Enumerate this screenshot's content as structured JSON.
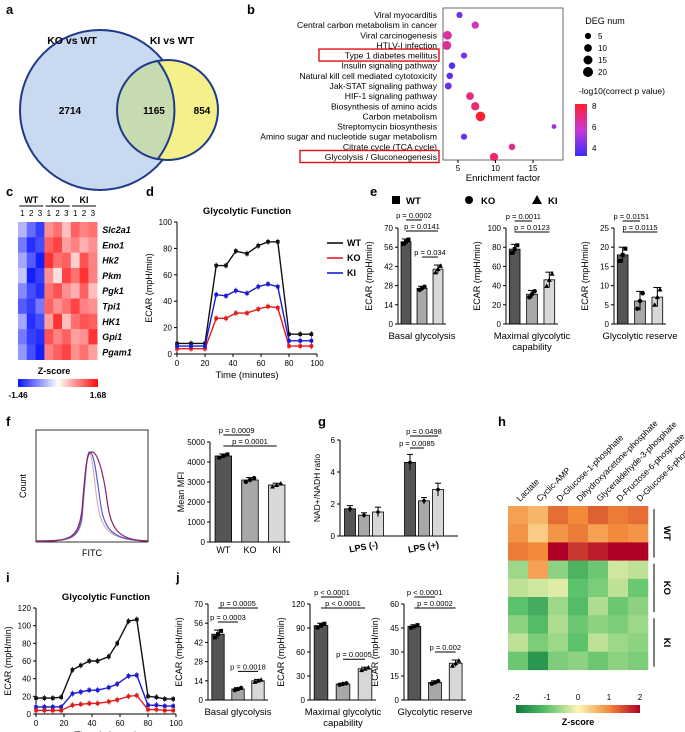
{
  "panels": {
    "a": {
      "label": "a",
      "set1": "KO vs WT",
      "set2": "KI vs WT",
      "only1": "2714",
      "both": "1165",
      "only2": "854",
      "colors": {
        "set1": "#c9daf0",
        "set2": "#f4f08a",
        "overlap": "#c7dbb0",
        "edge": "#1f3a8a"
      }
    },
    "b": {
      "label": "b",
      "chart_data": {
        "type": "scatter",
        "xlabel": "Enrichment factor",
        "xticks": [
          "5",
          "10",
          "15"
        ],
        "xlim": [
          3,
          19
        ],
        "categories": [
          "Viral myocarditis",
          "Central carbon metabolism in cancer",
          "Viral carcinogenesis",
          "HTLV-I infection",
          "Type 1 diabetes mellitus",
          "Insulin signaling pathway",
          "Natural kill cell mediated cytotoxicity",
          "Jak-STAT signaling pathway",
          "HIF-1 signaling pathway",
          "Biosynthesis of amino acids",
          "Carbon metabolism",
          "Streptomycin biosynthesis",
          "Amino sugar and nucleotide sugar metabolism",
          "Citrate cycle (TCA cycle)",
          "Glycolysis / Gluconeogenesis"
        ],
        "highlighted": [
          "Type 1 diabetes mellitus",
          "Glycolysis / Gluconeogenesis"
        ],
        "points": [
          {
            "x": 5.2,
            "size": 5,
            "p": 3.2
          },
          {
            "x": 7.3,
            "size": 8,
            "p": 5.5
          },
          {
            "x": 3.6,
            "size": 14,
            "p": 6.0
          },
          {
            "x": 3.5,
            "size": 15,
            "p": 6.2
          },
          {
            "x": 5.8,
            "size": 5,
            "p": 3.4
          },
          {
            "x": 4.2,
            "size": 6,
            "p": 2.6
          },
          {
            "x": 3.9,
            "size": 6,
            "p": 2.8
          },
          {
            "x": 3.7,
            "size": 7,
            "p": 3.0
          },
          {
            "x": 6.6,
            "size": 10,
            "p": 6.5
          },
          {
            "x": 7.3,
            "size": 12,
            "p": 6.8
          },
          {
            "x": 8.0,
            "size": 18,
            "p": 8.0
          },
          {
            "x": 17.8,
            "size": 2,
            "p": 4.0
          },
          {
            "x": 5.8,
            "size": 5,
            "p": 3.1
          },
          {
            "x": 12.2,
            "size": 6,
            "p": 6.3
          },
          {
            "x": 9.8,
            "size": 12,
            "p": 7.0
          }
        ],
        "size_legend_title": "DEG num",
        "size_legend": [
          "5",
          "10",
          "15",
          "20"
        ],
        "color_legend_title": "-log10(correct p value)",
        "color_ticks": [
          "8",
          "6",
          "4"
        ],
        "colors": {
          "low": "#3b2bf5",
          "mid": "#c63ad6",
          "high": "#ff1f2e",
          "box": "#e01010"
        }
      }
    },
    "c": {
      "label": "c",
      "groups": [
        "WT",
        "KO",
        "KI"
      ],
      "reps": [
        "1",
        "2",
        "3"
      ],
      "genes": [
        "Slc2a1",
        "Eno1",
        "Hk2",
        "Pkm",
        "Pgk1",
        "Tpi1",
        "HK1",
        "Gpi1",
        "Pgam1"
      ],
      "values": [
        [
          0.6,
          1.1,
          1.4,
          -0.6,
          -0.8,
          -0.3,
          -0.9,
          -0.7,
          -0.8
        ],
        [
          1.0,
          1.5,
          1.3,
          -0.9,
          -1.1,
          -0.5,
          -0.7,
          -0.4,
          -0.6
        ],
        [
          0.7,
          1.2,
          1.6,
          -1.2,
          -0.8,
          -0.9,
          -0.2,
          -1.0,
          -0.7
        ],
        [
          0.5,
          1.6,
          1.4,
          -0.6,
          -0.1,
          -1.1,
          -0.8,
          -1.2,
          -0.7
        ],
        [
          0.9,
          1.3,
          1.5,
          -0.8,
          -1.0,
          -0.6,
          -0.4,
          -0.9,
          -0.3
        ],
        [
          1.2,
          1.4,
          1.0,
          -0.9,
          -0.6,
          -0.8,
          -1.1,
          -0.7,
          -0.6
        ],
        [
          0.7,
          1.5,
          1.3,
          -0.5,
          -1.2,
          -0.3,
          -0.8,
          -1.0,
          -0.9
        ],
        [
          1.0,
          1.4,
          1.5,
          -1.0,
          -0.7,
          -0.9,
          -0.5,
          -0.6,
          -1.2
        ],
        [
          0.8,
          1.3,
          1.6,
          -0.7,
          -0.9,
          -1.1,
          -0.6,
          -0.8,
          -0.5
        ]
      ],
      "legend_title": "Z-score",
      "min_label": "-1.46",
      "max_label": "1.68",
      "colors": {
        "low": "#0a14ff",
        "mid": "#ffffff",
        "high": "#ff0a0a"
      }
    },
    "d": {
      "label": "d",
      "chart_data": {
        "type": "line",
        "title": "Glycolytic Function",
        "xlabel": "Time (minutes)",
        "ylabel": "ECAR (mpH/min)",
        "xlim": [
          0,
          100
        ],
        "ylim": [
          0,
          100
        ],
        "xticks": [
          "0",
          "20",
          "40",
          "60",
          "80",
          "100"
        ],
        "yticks": [
          "0",
          "20",
          "40",
          "60",
          "80",
          "100"
        ],
        "x": [
          0,
          10,
          20,
          28,
          35,
          42,
          50,
          58,
          65,
          72,
          80,
          88,
          96
        ],
        "series": [
          {
            "name": "WT",
            "color": "#111111",
            "values": [
              8,
              8,
              8,
              67,
              67,
              78,
              76,
              82,
              85,
              85,
              15,
              15,
              15
            ]
          },
          {
            "name": "KO",
            "color": "#e31b1b",
            "values": [
              4,
              4,
              4,
              27,
              27,
              31,
              31,
              34,
              36,
              35,
              6,
              6,
              6
            ]
          },
          {
            "name": "KI",
            "color": "#1a1ad6",
            "values": [
              6,
              6,
              6,
              45,
              44,
              48,
              46,
              51,
              53,
              51,
              10,
              10,
              10
            ]
          }
        ]
      }
    },
    "e": {
      "label": "e",
      "legend": [
        "WT",
        "KO",
        "KI"
      ],
      "chart_data": [
        {
          "type": "bar",
          "xlabel": "Basal glycolysis",
          "ylabel": "ECAR (mpH/min)",
          "ylim": [
            0,
            70
          ],
          "yticks": [
            "0",
            "14",
            "28",
            "42",
            "56",
            "70"
          ],
          "categories": [
            "WT",
            "KO",
            "KI"
          ],
          "values": [
            60,
            26,
            40
          ],
          "errors": [
            2,
            1.5,
            3
          ],
          "pvalues": [
            {
              "text": "p = 0.0141",
              "from": 0,
              "to": 2
            },
            {
              "text": "p = 0.0002",
              "from": 0,
              "to": 1
            },
            {
              "text": "p = 0.034",
              "from": 1,
              "to": 2
            }
          ]
        },
        {
          "type": "bar",
          "xlabel": "Maximal glycolytic\ncapability",
          "ylabel": "ECAR (mpH/min)",
          "ylim": [
            0,
            100
          ],
          "yticks": [
            "0",
            "20",
            "40",
            "60",
            "80",
            "100"
          ],
          "categories": [
            "WT",
            "KO",
            "KI"
          ],
          "values": [
            78,
            31,
            46
          ],
          "errors": [
            5,
            4,
            8
          ],
          "pvalues": [
            {
              "text": "p = 0.0123",
              "from": 0,
              "to": 2
            },
            {
              "text": "p = 0.0011",
              "from": 0,
              "to": 1
            }
          ]
        },
        {
          "type": "bar",
          "xlabel": "Glycolytic reserve",
          "ylabel": "ECAR (mpH/min)",
          "ylim": [
            0,
            25
          ],
          "yticks": [
            "0",
            "5",
            "10",
            "15",
            "20",
            "25"
          ],
          "categories": [
            "WT",
            "KO",
            "KI"
          ],
          "values": [
            18,
            6,
            7
          ],
          "errors": [
            2,
            2.5,
            2.5
          ],
          "pvalues": [
            {
              "text": "p = 0.0115",
              "from": 0,
              "to": 2
            },
            {
              "text": "p = 0.0151",
              "from": 0,
              "to": 1
            }
          ]
        }
      ]
    },
    "f": {
      "label": "f",
      "hist_ylabel": "Count",
      "hist_xlabel": "FITC",
      "chart_data": {
        "type": "bar",
        "ylabel": "Mean MFI",
        "ylim": [
          0,
          5000
        ],
        "yticks": [
          "0",
          "1000",
          "2000",
          "3000",
          "4000",
          "5000"
        ],
        "categories": [
          "WT",
          "KO",
          "KI"
        ],
        "values": [
          4300,
          3100,
          2850
        ],
        "errors": [
          100,
          120,
          90
        ],
        "pvalues": [
          {
            "text": "p = 0.0001",
            "from": 0,
            "to": 2
          },
          {
            "text": "p = 0.0009",
            "from": 0,
            "to": 1
          }
        ]
      }
    },
    "g": {
      "label": "g",
      "chart_data": {
        "type": "bar",
        "ylabel": "NAD+/NADH ratio",
        "ylim": [
          0,
          6
        ],
        "yticks": [
          "0",
          "2",
          "4",
          "6"
        ],
        "groups": [
          "LPS (-)",
          "LPS (+)"
        ],
        "series": [
          {
            "values": [
              1.7,
              4.6
            ]
          },
          {
            "values": [
              1.3,
              2.2
            ]
          },
          {
            "values": [
              1.5,
              2.9
            ]
          }
        ],
        "errors": [
          [
            0.2,
            0.5
          ],
          [
            0.15,
            0.2
          ],
          [
            0.3,
            0.4
          ]
        ],
        "pvalues": [
          {
            "text": "p = 0.0498",
            "group": 1,
            "from": 0,
            "to": 2
          },
          {
            "text": "p = 0.0085",
            "group": 1,
            "from": 0,
            "to": 1
          }
        ]
      }
    },
    "h": {
      "label": "h",
      "metabolites": [
        "Lactate",
        "Cyclic-AMP",
        "D-Glucose-1-phosphate",
        "Dihydroxyacetone-phosphate",
        "Glyceraldehyde-3-phosphate",
        "D-Fructose-6-phosphate",
        "D-Glucose-6-phosphate"
      ],
      "groups": [
        "WT",
        "KO",
        "KI"
      ],
      "values": [
        [
          0.8,
          0.6,
          1.2,
          1.0,
          1.3,
          1.1,
          1.2
        ],
        [
          0.9,
          0.4,
          0.9,
          1.1,
          0.8,
          1.0,
          0.9
        ],
        [
          1.1,
          1.0,
          2.0,
          1.6,
          1.8,
          2.2,
          2.1
        ],
        [
          -0.6,
          0.8,
          -0.7,
          -1.2,
          -0.9,
          -0.3,
          -0.4
        ],
        [
          -0.4,
          -0.3,
          -0.2,
          -1.0,
          -0.8,
          -0.4,
          -0.9
        ],
        [
          -1.0,
          -1.3,
          -0.6,
          -1.1,
          -0.5,
          -0.9,
          -0.7
        ],
        [
          -0.7,
          -1.1,
          -0.5,
          -0.9,
          -0.7,
          -0.8,
          -0.6
        ],
        [
          -0.4,
          -0.8,
          -0.6,
          -1.0,
          -0.4,
          -0.6,
          -0.7
        ],
        [
          -0.9,
          -1.6,
          -0.8,
          -0.7,
          -0.9,
          -0.7,
          -0.8
        ]
      ],
      "scale_ticks": [
        "-2",
        "-1",
        "0",
        "1",
        "2"
      ],
      "legend_title": "Z-score",
      "colors": {
        "low": "#0b7a3a",
        "midlow": "#5cc26b",
        "mid": "#fff6b5",
        "midhigh": "#f28a3a",
        "high": "#b00026"
      }
    },
    "i": {
      "label": "i",
      "chart_data": {
        "type": "line",
        "title": "Glycolytic Function",
        "xlabel": "Time (minutes)",
        "ylabel": "ECAR (mpH/min)",
        "xlim": [
          0,
          100
        ],
        "ylim": [
          0,
          120
        ],
        "xticks": [
          "0",
          "20",
          "40",
          "60",
          "80",
          "100"
        ],
        "yticks": [
          "0",
          "20",
          "40",
          "60",
          "80",
          "100",
          "120"
        ],
        "x": [
          0,
          6,
          12,
          18,
          26,
          32,
          38,
          44,
          52,
          58,
          66,
          72,
          80,
          86,
          92,
          98
        ],
        "series": [
          {
            "color": "#111111",
            "values": [
              18,
              18,
              18,
              19,
              50,
              55,
              60,
              60,
              65,
              80,
              105,
              107,
              20,
              19,
              17,
              17
            ]
          },
          {
            "color": "#1a1ad6",
            "values": [
              8,
              8,
              8,
              8,
              23,
              25,
              27,
              27,
              30,
              34,
              43,
              44,
              10,
              10,
              9,
              9
            ]
          },
          {
            "color": "#e31b1b",
            "values": [
              4,
              4,
              4,
              4,
              10,
              11,
              12,
              12,
              14,
              16,
              20,
              21,
              5,
              5,
              4,
              4
            ]
          }
        ]
      }
    },
    "j": {
      "label": "j",
      "chart_data": [
        {
          "type": "bar",
          "xlabel": "Basal glycolysis",
          "ylabel": "ECAR (mpH/min)",
          "ylim": [
            0,
            70
          ],
          "yticks": [
            "0",
            "14",
            "28",
            "42",
            "56",
            "70"
          ],
          "categories": [
            "WT",
            "KO",
            "KI"
          ],
          "values": [
            48,
            8,
            14
          ],
          "errors": [
            3,
            1,
            1
          ],
          "pvalues": [
            {
              "text": "p = 0.0005",
              "from": 0,
              "to": 2
            },
            {
              "text": "p = 0.0003",
              "from": 0,
              "to": 1
            },
            {
              "text": "p = 0.0018",
              "from": 1,
              "to": 2
            }
          ]
        },
        {
          "type": "bar",
          "xlabel": "Maximal glycolytic\ncapability",
          "ylabel": "ECAR (mpH/min)",
          "ylim": [
            0,
            120
          ],
          "yticks": [
            "0",
            "30",
            "60",
            "90",
            "120"
          ],
          "categories": [
            "WT",
            "KO",
            "KI"
          ],
          "values": [
            93,
            20,
            39
          ],
          "errors": [
            3,
            1,
            2
          ],
          "pvalues": [
            {
              "text": "p < 0.0001",
              "from": 0,
              "to": 2
            },
            {
              "text": "p < 0.0001",
              "from": 0,
              "to": 1
            },
            {
              "text": "p = 0.0005",
              "from": 1,
              "to": 2
            }
          ]
        },
        {
          "type": "bar",
          "xlabel": "Glycolytic reserve",
          "ylabel": "ECAR (mpH/min)",
          "ylim": [
            0,
            60
          ],
          "yticks": [
            "0",
            "15",
            "30",
            "45",
            "60"
          ],
          "categories": [
            "WT",
            "KO",
            "KI"
          ],
          "values": [
            46,
            11,
            23
          ],
          "errors": [
            1,
            1,
            2
          ],
          "pvalues": [
            {
              "text": "p = 0.0002",
              "from": 0,
              "to": 2
            },
            {
              "text": "p < 0.0001",
              "from": 0,
              "to": 1
            },
            {
              "text": "p = 0.002",
              "from": 1,
              "to": 2
            }
          ]
        }
      ]
    }
  },
  "bar_colors": [
    "#555555",
    "#a8a8a8",
    "#d8d8d8"
  ]
}
